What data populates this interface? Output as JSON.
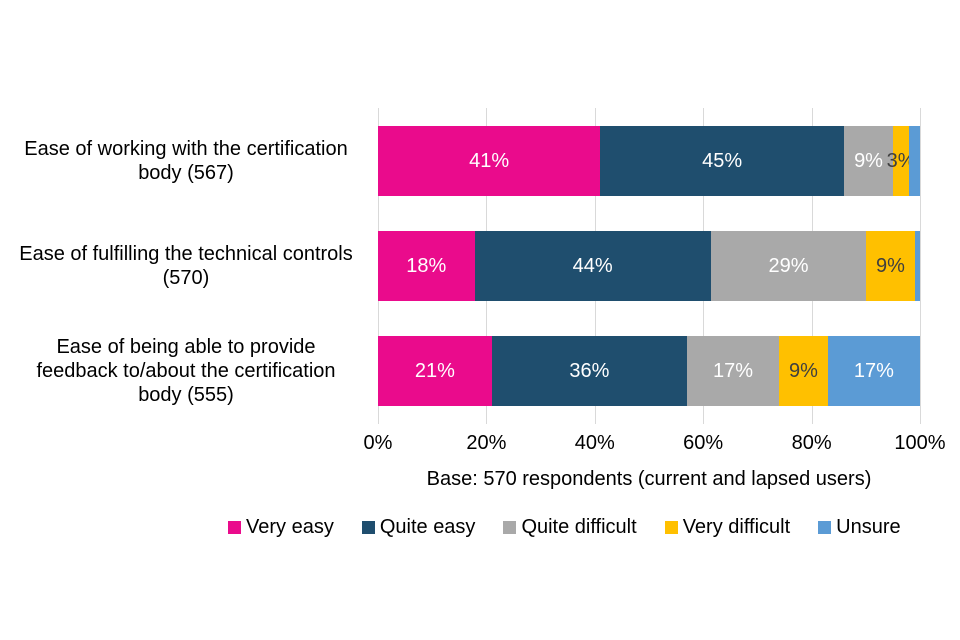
{
  "chart_data": {
    "type": "bar",
    "variant": "horizontal-stacked",
    "title": "",
    "categories": [
      "Ease of working with the certification body (567)",
      "Ease of fulfilling the technical controls (570)",
      "Ease of being able to provide feedback to/about the certification body (555)"
    ],
    "category_lines": [
      [
        "Ease of working with the certification",
        "body (567)"
      ],
      [
        "Ease of fulfilling the technical controls",
        "(570)"
      ],
      [
        "Ease of being able to provide",
        "feedback to/about the certification",
        "body (555)"
      ]
    ],
    "series": [
      {
        "name": "Very easy",
        "color": "#EA0B8C",
        "label_color": "#FFFFFF",
        "values": [
          41,
          18,
          21
        ],
        "labels": [
          "41%",
          "18%",
          "21%"
        ]
      },
      {
        "name": "Quite easy",
        "color": "#1F4E6E",
        "label_color": "#FFFFFF",
        "values": [
          45,
          44,
          36
        ],
        "labels": [
          "45%",
          "44%",
          "36%"
        ]
      },
      {
        "name": "Quite difficult",
        "color": "#A9A9A9",
        "label_color": "#FFFFFF",
        "values": [
          9,
          29,
          17
        ],
        "labels": [
          "9%",
          "29%",
          "17%"
        ]
      },
      {
        "name": "Very difficult",
        "color": "#FFC000",
        "label_color": "#3F3F3F",
        "values": [
          3,
          9,
          9
        ],
        "labels": [
          "3%",
          "9%",
          "9%"
        ]
      },
      {
        "name": "Unsure",
        "color": "#5B9BD5",
        "label_color": "#FFFFFF",
        "values": [
          2,
          1,
          17
        ],
        "labels": [
          "",
          "",
          "17%"
        ]
      }
    ],
    "x_axis": {
      "min": 0,
      "max": 100,
      "ticks": [
        "0%",
        "20%",
        "40%",
        "60%",
        "80%",
        "100%"
      ],
      "gridlines": true,
      "gridline_color": "#D9D9D9"
    },
    "base_note": "Base: 570 respondents (current and lapsed users)",
    "legend": {
      "position": "bottom",
      "items": [
        "Very easy",
        "Quite easy",
        "Quite difficult",
        "Very difficult",
        "Unsure"
      ]
    }
  }
}
